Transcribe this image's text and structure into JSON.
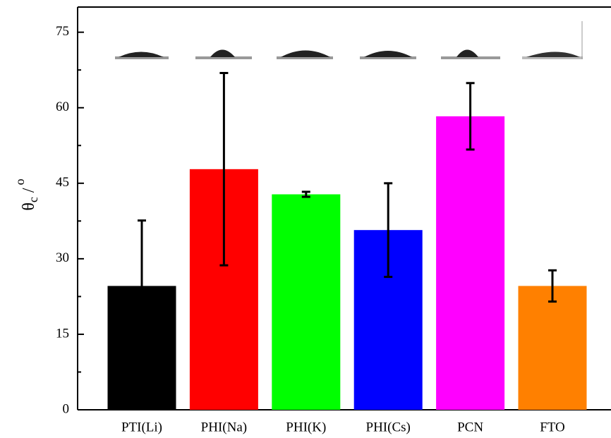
{
  "chart_data": {
    "type": "bar",
    "y_label": {
      "symbol": "θ",
      "sub": "c",
      "slash": "/",
      "sup": "o"
    },
    "categories": [
      "PTI(Li)",
      "PHI(Na)",
      "PHI(K)",
      "PHI(Cs)",
      "PCN",
      "FTO"
    ],
    "values": [
      24.6,
      47.8,
      42.8,
      35.7,
      58.3,
      24.6
    ],
    "errors": [
      13.0,
      19.1,
      0.5,
      9.3,
      6.6,
      3.1
    ],
    "colors": [
      "#000000",
      "#ff0000",
      "#00ff00",
      "#0000ff",
      "#ff00ff",
      "#ff8000"
    ],
    "ylim": [
      0,
      80
    ],
    "yticks": [
      0,
      15,
      30,
      45,
      60,
      75
    ],
    "yminor": [
      7.5,
      22.5,
      37.5,
      52.5,
      67.5
    ]
  }
}
